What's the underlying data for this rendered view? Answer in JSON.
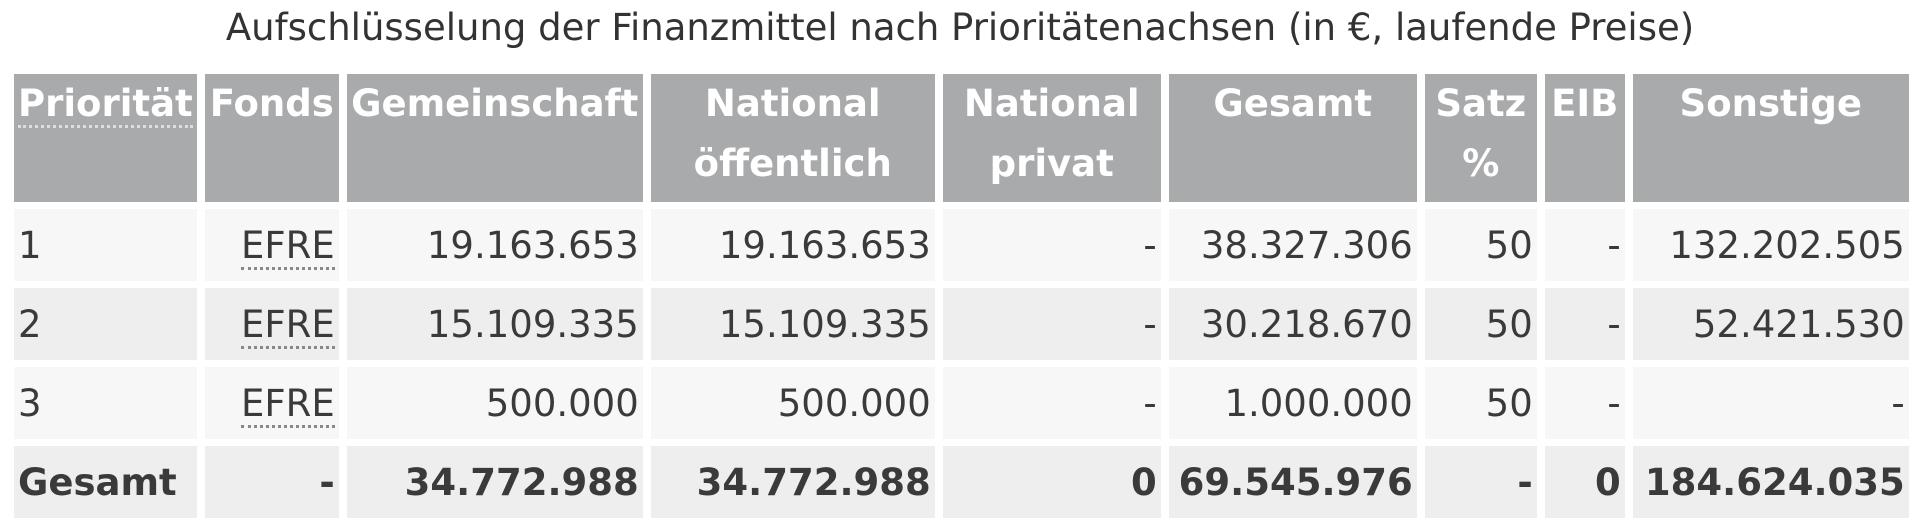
{
  "caption": "Aufschlüsselung der Finanzmittel nach Prioritätenachsen (in €, laufende Preise)",
  "headers": {
    "prioritaet": "Priorität",
    "fonds": "Fonds",
    "gemeinschaft": "Gemeinschaft",
    "national_oeffentlich_1": "National",
    "national_oeffentlich_2": "öffentlich",
    "national_privat_1": "National",
    "national_privat_2": "privat",
    "gesamt": "Gesamt",
    "satz_1": "Satz",
    "satz_2": "%",
    "eib": "EIB",
    "sonstige": "Sonstige"
  },
  "rows": [
    {
      "prioritaet": "1",
      "fonds": "EFRE",
      "gemeinschaft": "19.163.653",
      "national_oeffentlich": "19.163.653",
      "national_privat": "-",
      "gesamt": "38.327.306",
      "satz": "50",
      "eib": "-",
      "sonstige": "132.202.505"
    },
    {
      "prioritaet": "2",
      "fonds": "EFRE",
      "gemeinschaft": "15.109.335",
      "national_oeffentlich": "15.109.335",
      "national_privat": "-",
      "gesamt": "30.218.670",
      "satz": "50",
      "eib": "-",
      "sonstige": "52.421.530"
    },
    {
      "prioritaet": "3",
      "fonds": "EFRE",
      "gemeinschaft": "500.000",
      "national_oeffentlich": "500.000",
      "national_privat": "-",
      "gesamt": "1.000.000",
      "satz": "50",
      "eib": "-",
      "sonstige": "-"
    }
  ],
  "total": {
    "prioritaet": "Gesamt",
    "fonds": "-",
    "gemeinschaft": "34.772.988",
    "national_oeffentlich": "34.772.988",
    "national_privat": "0",
    "gesamt": "69.545.976",
    "satz": "-",
    "eib": "0",
    "sonstige": "184.624.035"
  },
  "colors": {
    "header_bg": "#a9aaac",
    "header_text": "#ffffff",
    "row_odd_bg": "#f7f7f7",
    "row_even_bg": "#eeeeee",
    "text": "#333333"
  }
}
